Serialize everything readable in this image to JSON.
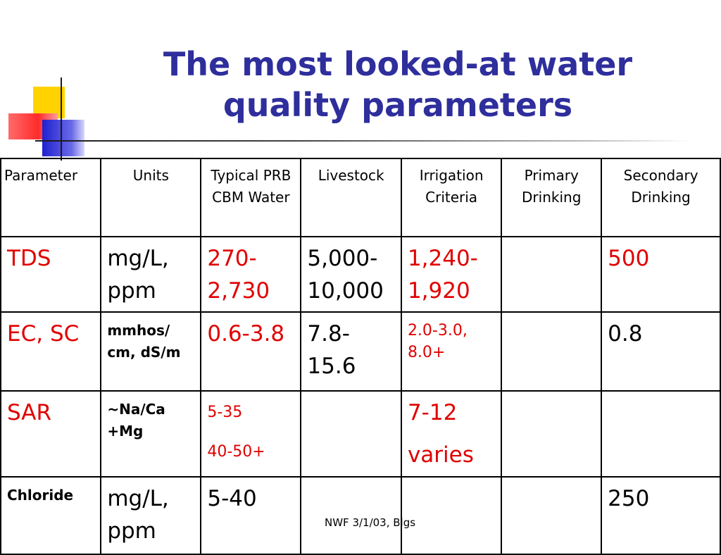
{
  "title": "The most looked-at water quality parameters",
  "table": {
    "headers": [
      "Parameter",
      "Units",
      "Typical PRB CBM Water",
      "Livestock",
      "Irrigation Criteria",
      "Primary Drinking",
      "Secondary Drinking"
    ],
    "rows": [
      [
        "TDS",
        "mg/L, ppm",
        "270-2,730",
        "5,000-10,000",
        "1,240-1,920",
        "",
        "500"
      ],
      [
        "EC, SC",
        "mmhos/ cm, dS/m",
        "0.6-3.8",
        "7.8-15.6",
        "2.0-3.0, 8.0+",
        "",
        "0.8"
      ],
      [
        "SAR",
        "~Na/Ca +Mg",
        [
          "5-35",
          "40-50+"
        ],
        "",
        [
          "7-12",
          "varies"
        ],
        "",
        ""
      ],
      [
        "Chloride",
        "mg/L, ppm",
        "5-40",
        "",
        "",
        "",
        "250"
      ]
    ]
  },
  "footer": "NWF 3/1/03, Blgs",
  "colors": {
    "title": "#2e2e9c",
    "highlight": "#e00000",
    "text": "#000000"
  }
}
